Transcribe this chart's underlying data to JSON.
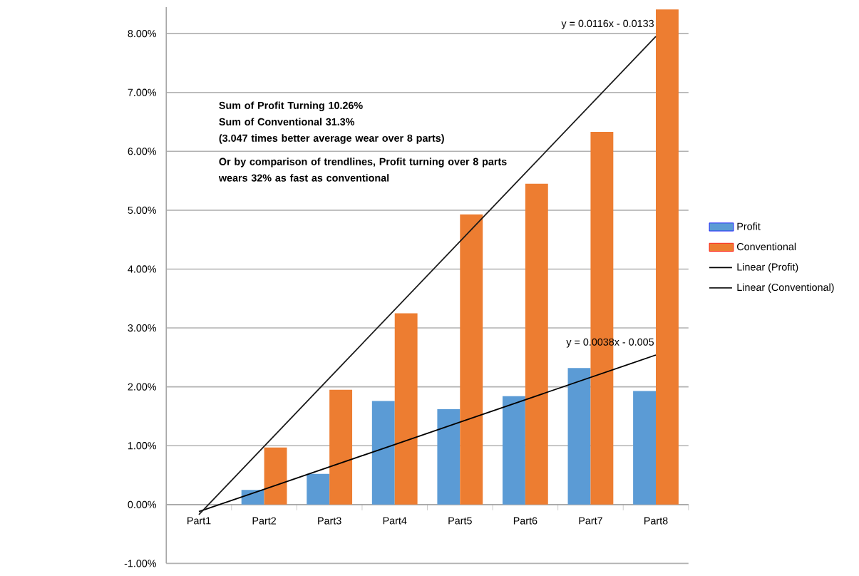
{
  "chart_data": {
    "type": "bar",
    "categories": [
      "Part1",
      "Part2",
      "Part3",
      "Part4",
      "Part5",
      "Part6",
      "Part7",
      "Part8"
    ],
    "series": [
      {
        "name": "Profit",
        "type": "bar",
        "color": "#5b9bd5",
        "values": [
          0,
          0.25,
          0.52,
          1.76,
          1.62,
          1.84,
          2.32,
          1.93
        ]
      },
      {
        "name": "Conventional",
        "type": "bar",
        "color": "#ed7d31",
        "values": [
          0,
          0.97,
          1.95,
          3.25,
          4.93,
          5.45,
          6.33,
          8.41
        ]
      },
      {
        "name": "Linear (Profit)",
        "type": "line",
        "color": "#000000",
        "values": [
          -0.12,
          0.26,
          0.64,
          1.02,
          1.4,
          1.78,
          2.16,
          2.54
        ]
      },
      {
        "name": "Linear (Conventional)",
        "type": "line",
        "color": "#1a1a1a",
        "values": [
          -0.17,
          0.99,
          2.15,
          3.31,
          4.47,
          5.63,
          6.79,
          7.95
        ]
      }
    ],
    "ylim": [
      -1,
      8.45
    ],
    "yticks": [
      {
        "value": -1,
        "label": "-1.00%"
      },
      {
        "value": 0,
        "label": "0.00%"
      },
      {
        "value": 1,
        "label": "1.00%"
      },
      {
        "value": 2,
        "label": "2.00%"
      },
      {
        "value": 3,
        "label": "3.00%"
      },
      {
        "value": 4,
        "label": "4.00%"
      },
      {
        "value": 5,
        "label": "5.00%"
      },
      {
        "value": 6,
        "label": "6.00%"
      },
      {
        "value": 7,
        "label": "7.00%"
      },
      {
        "value": 8,
        "label": "8.00%"
      }
    ],
    "grid": "y",
    "legend": "right",
    "annotations": [
      "Sum of Profit Turning  10.26%",
      "Sum of Conventional   31.3%",
      "(3.047 times better average wear over 8 parts)",
      "Or by comparison of trendlines, Profit turning over 8 parts wears 32% as fast as conventional",
      "y = 0.0116x - 0.0133",
      "y = 0.0038x - 0.005"
    ]
  }
}
